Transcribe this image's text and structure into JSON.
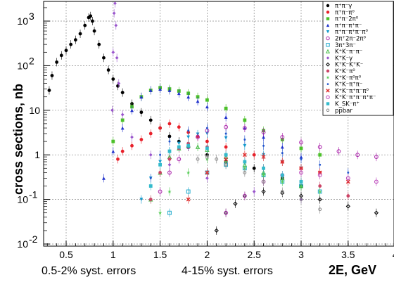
{
  "chart_data": {
    "type": "scatter",
    "title": "",
    "xlabel": "2E, GeV",
    "ylabel": "cross sections, nb",
    "xlim": [
      0.3,
      4.2
    ],
    "ylim": [
      0.01,
      3000
    ],
    "log_y": true,
    "grid": true,
    "legend_position": "top-right",
    "x_ticks": [
      "0.5",
      "1",
      "1.5",
      "2",
      "2.5",
      "3",
      "3.5",
      "4"
    ],
    "y_ticks": [
      {
        "value": 1000,
        "base": "10",
        "exp": "3"
      },
      {
        "value": 100,
        "base": "10",
        "exp": "2"
      },
      {
        "value": 10,
        "base": "10",
        "exp": ""
      },
      {
        "value": 1,
        "base": "1",
        "exp": ""
      },
      {
        "value": 0.1,
        "base": "10",
        "exp": "-1"
      },
      {
        "value": 0.01,
        "base": "10",
        "exp": "-2"
      }
    ],
    "annotations": [
      "0.5-2% syst. errors",
      "4-15% syst. errors"
    ],
    "series": [
      {
        "name": "π⁺π⁻γ",
        "color": "#000000",
        "marker": "circle",
        "x": [
          0.32,
          0.35,
          0.4,
          0.45,
          0.5,
          0.55,
          0.6,
          0.65,
          0.7,
          0.74,
          0.76,
          0.78,
          0.8,
          0.85,
          0.9,
          0.95,
          1.0,
          1.05,
          1.1,
          1.2,
          1.3,
          1.4,
          1.5,
          1.6,
          1.7,
          1.8,
          2.0,
          2.2,
          2.5,
          2.8,
          3.0
        ],
        "y": [
          28,
          60,
          120,
          170,
          220,
          300,
          380,
          520,
          800,
          1200,
          1300,
          1000,
          600,
          300,
          150,
          80,
          50,
          35,
          25,
          14,
          9,
          6,
          4,
          2.6,
          2.0,
          1.5,
          1.0,
          0.7,
          0.5,
          0.3,
          0.2
        ]
      },
      {
        "name": "π⁺π⁻π⁰",
        "color": "#e8202a",
        "marker": "circle",
        "x": [
          1.05,
          1.1,
          1.2,
          1.3,
          1.4,
          1.5,
          1.6,
          1.7,
          1.8,
          1.9,
          2.0,
          2.2,
          2.5,
          2.8,
          3.0,
          3.2
        ],
        "y": [
          0.8,
          1.2,
          1.6,
          2.2,
          3.0,
          4.0,
          5.0,
          4.2,
          3.2,
          2.6,
          2.0,
          1.5,
          1.0,
          0.7,
          0.5,
          0.4
        ]
      },
      {
        "name": "π⁺π⁻2π⁰",
        "color": "#4cc02a",
        "marker": "square",
        "x": [
          1.0,
          1.1,
          1.2,
          1.3,
          1.4,
          1.5,
          1.6,
          1.7,
          1.8,
          1.9,
          2.0,
          2.2,
          2.4,
          2.6,
          2.8,
          3.0,
          3.2
        ],
        "y": [
          2,
          6,
          12,
          20,
          28,
          32,
          30,
          27,
          24,
          20,
          17,
          11,
          6,
          3.5,
          2.2,
          1.4,
          1.0
        ]
      },
      {
        "name": "π⁺π⁻π⁺π⁻",
        "color": "#2233cc",
        "marker": "triangle",
        "x": [
          0.9,
          1.0,
          1.1,
          1.2,
          1.3,
          1.4,
          1.5,
          1.6,
          1.7,
          1.8,
          1.9,
          2.0,
          2.2,
          2.4,
          2.6,
          2.8,
          3.0
        ],
        "y": [
          0.3,
          1.2,
          4,
          10,
          20,
          28,
          30,
          28,
          24,
          20,
          16,
          12,
          7,
          4,
          2.5,
          1.5,
          0.9
        ]
      },
      {
        "name": "π⁺π⁻π⁺π⁻π⁰",
        "color": "#1199cc",
        "marker": "triangle-down",
        "x": [
          1.3,
          1.4,
          1.5,
          1.6,
          1.7,
          1.8,
          1.9,
          2.0,
          2.2,
          2.4,
          2.6,
          2.8,
          3.0
        ],
        "y": [
          0.1,
          0.3,
          0.7,
          1.2,
          1.8,
          2.5,
          2.9,
          3.0,
          2.4,
          1.6,
          1.0,
          0.7,
          0.5
        ]
      },
      {
        "name": "2π⁺2π⁻2π⁰",
        "color": "#aa22aa",
        "marker": "circle-open",
        "x": [
          1.5,
          1.6,
          1.7,
          1.8,
          1.9,
          2.0,
          2.2,
          2.4,
          2.6,
          2.8,
          3.0,
          3.2,
          3.4,
          3.6,
          3.8,
          4.0
        ],
        "y": [
          0.15,
          0.4,
          0.8,
          1.5,
          2.5,
          3.5,
          4.2,
          4.0,
          3.2,
          2.5,
          1.9,
          1.5,
          1.2,
          1.0,
          0.9,
          0.8
        ]
      },
      {
        "name": "3π⁺3π⁻",
        "color": "#22aacc",
        "marker": "square-open",
        "x": [
          1.6,
          1.8,
          2.0,
          2.2,
          2.4,
          2.6,
          2.8,
          3.0,
          3.2
        ],
        "y": [
          0.05,
          0.15,
          0.4,
          0.6,
          0.5,
          0.35,
          0.25,
          0.2,
          0.15
        ]
      },
      {
        "name": "K⁺K⁻π⁻π⁻",
        "color": "#44bb44",
        "marker": "triangle-open",
        "x": [
          1.4,
          1.5,
          1.6,
          1.7,
          1.8,
          1.9,
          2.0,
          2.2,
          2.4,
          2.6,
          2.8,
          3.0
        ],
        "y": [
          0.1,
          0.4,
          0.9,
          1.4,
          1.6,
          1.5,
          1.3,
          0.9,
          0.6,
          0.4,
          0.3,
          0.2
        ]
      },
      {
        "name": "K⁺K⁻γ",
        "color": "#9955cc",
        "marker": "diamond",
        "x": [
          0.99,
          1.0,
          1.01,
          1.02,
          1.03,
          1.04,
          1.06,
          1.1,
          1.2,
          1.4,
          1.6,
          2.0,
          2.5,
          3.0
        ],
        "y": [
          10,
          200,
          1500,
          2500,
          800,
          150,
          40,
          8,
          2.5,
          1.0,
          0.6,
          0.3,
          0.15,
          0.1
        ]
      },
      {
        "name": "K⁺K⁻K⁺K⁻",
        "color": "#000000",
        "marker": "diamond-open",
        "x": [
          2.1,
          2.2,
          2.3,
          2.4,
          2.6,
          2.8,
          3.0,
          3.2,
          3.5,
          3.8
        ],
        "y": [
          0.02,
          0.05,
          0.08,
          0.12,
          0.15,
          0.14,
          0.12,
          0.1,
          0.07,
          0.05
        ]
      },
      {
        "name": "K⁺K⁻π⁰",
        "color": "#cc4466",
        "marker": "circle",
        "x": [
          1.4,
          1.5,
          1.6,
          1.7,
          1.8,
          2.0,
          2.2,
          2.4,
          2.6,
          2.8,
          3.0,
          3.2,
          3.5
        ],
        "y": [
          0.1,
          0.4,
          0.8,
          1.4,
          1.8,
          1.5,
          1.0,
          0.7,
          0.5,
          0.35,
          0.25,
          0.2,
          0.12
        ]
      },
      {
        "name": "K⁺K⁻π⁰π⁰",
        "color": "#55cc55",
        "marker": "star",
        "x": [
          1.5,
          1.6,
          1.8,
          2.0,
          2.2,
          2.4,
          2.6,
          2.8,
          3.0,
          3.2
        ],
        "y": [
          0.05,
          0.15,
          0.4,
          0.8,
          0.7,
          0.5,
          0.35,
          0.25,
          0.2,
          0.15
        ]
      },
      {
        "name": "K⁺K⁻π⁺π⁻",
        "color": "#2255cc",
        "marker": "dot",
        "x": [
          1.4,
          1.5,
          1.6,
          1.8,
          2.0,
          2.2,
          2.4,
          2.6,
          2.8,
          3.0,
          3.2,
          3.5
        ],
        "y": [
          0.3,
          1.0,
          2.0,
          3.5,
          4.0,
          3.0,
          2.2,
          1.6,
          1.1,
          0.8,
          0.6,
          0.4
        ]
      },
      {
        "name": "K⁺K⁻π⁺π⁻π⁰",
        "color": "#e03030",
        "marker": "cross",
        "x": [
          1.8,
          2.0,
          2.2,
          2.4,
          2.6,
          2.8,
          3.0,
          3.2,
          3.5
        ],
        "y": [
          0.1,
          0.4,
          0.8,
          1.0,
          0.9,
          0.7,
          0.5,
          0.4,
          0.25
        ]
      },
      {
        "name": "K⁺K⁻π⁺π⁻π⁺π⁻",
        "color": "#bb44bb",
        "marker": "circle-open",
        "x": [
          2.2,
          2.4,
          2.6,
          2.8,
          3.0,
          3.2,
          3.5,
          3.8
        ],
        "y": [
          0.05,
          0.12,
          0.25,
          0.35,
          0.4,
          0.35,
          0.3,
          0.25
        ]
      },
      {
        "name": "K_SK⁻π⁺",
        "color": "#33bbcc",
        "marker": "square",
        "x": [
          1.4,
          1.5,
          1.6,
          1.7,
          1.8,
          2.0,
          2.2,
          2.4,
          2.6,
          2.8,
          3.0
        ],
        "y": [
          0.2,
          0.6,
          1.2,
          1.5,
          1.6,
          1.4,
          1.0,
          0.7,
          0.5,
          0.35,
          0.25
        ]
      },
      {
        "name": "ppbar",
        "color": "#888888",
        "marker": "open-small",
        "x": [
          1.9,
          2.0,
          2.1,
          2.2,
          2.4,
          2.6,
          2.8,
          3.0,
          3.2
        ],
        "y": [
          0.8,
          0.9,
          0.8,
          0.6,
          0.4,
          0.25,
          0.15,
          0.1,
          0.06
        ]
      }
    ]
  }
}
